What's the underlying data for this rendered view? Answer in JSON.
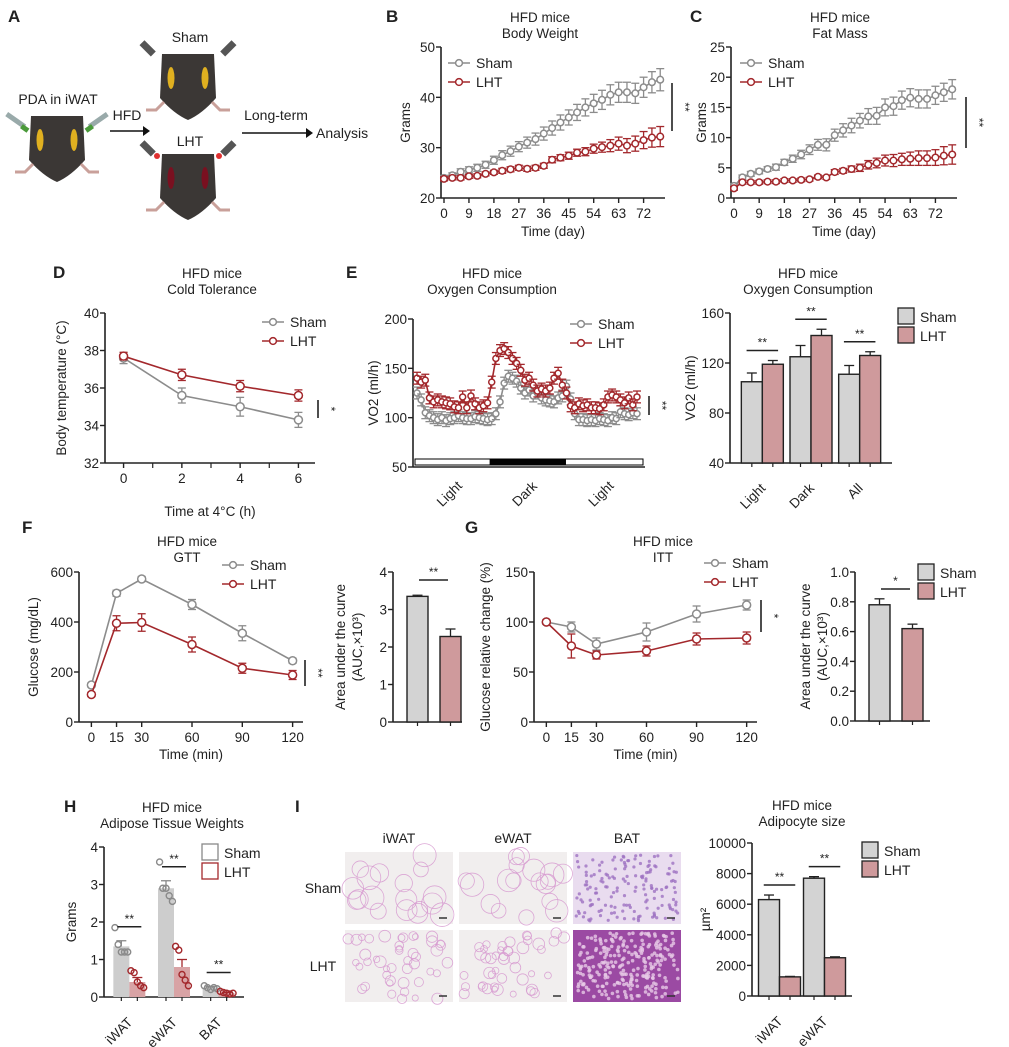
{
  "colors": {
    "sham_line": "#8c8c8c",
    "lht_line": "#a3282c",
    "sham_bar": "#d3d3d3",
    "lht_bar": "#cf9a9c",
    "axis": "#222222",
    "tissue_sham_bar": "#cdcdcd",
    "tissue_lht_bar": "#d8a3a5"
  },
  "panel_labels": [
    "A",
    "B",
    "C",
    "D",
    "E",
    "F",
    "G",
    "H",
    "I"
  ],
  "schematic": {
    "start_label": "PDA in iWAT",
    "arrow1_label": "HFD",
    "group_top": "Sham",
    "group_bottom": "LHT",
    "arrow2_label": "Long-term",
    "end_label": "Analysis"
  },
  "histology": {
    "columns": [
      "iWAT",
      "eWAT",
      "BAT"
    ],
    "rows": [
      "Sham",
      "LHT"
    ]
  },
  "chart_data": [
    {
      "id": "B",
      "type": "line",
      "title": "HFD mice\nBody Weight",
      "title_lines": [
        "HFD mice",
        "Body Weight"
      ],
      "xlabel": "Time (day)",
      "ylabel": "Grams",
      "xlim": [
        0,
        79
      ],
      "ylim": [
        20,
        50
      ],
      "xticks": [
        0,
        9,
        18,
        27,
        36,
        45,
        54,
        63,
        72
      ],
      "yticks": [
        20,
        30,
        40,
        50
      ],
      "legend": "top-left",
      "significance": "**",
      "x": [
        0,
        3,
        6,
        9,
        12,
        15,
        18,
        21,
        24,
        27,
        30,
        33,
        36,
        39,
        42,
        45,
        48,
        51,
        54,
        57,
        60,
        63,
        66,
        69,
        72,
        75,
        78
      ],
      "series": [
        {
          "name": "Sham",
          "values": [
            24,
            24.5,
            25.2,
            25.6,
            26,
            26.6,
            27.5,
            28.5,
            29.3,
            30.2,
            31,
            31.7,
            32.8,
            33.9,
            35,
            36,
            37,
            38,
            38.8,
            39.5,
            40.5,
            41,
            41,
            40.8,
            42,
            43,
            43.5
          ],
          "errors": [
            0.5,
            0.5,
            0.6,
            0.6,
            0.7,
            0.7,
            0.8,
            0.9,
            1,
            1,
            1.1,
            1.2,
            1.3,
            1.4,
            1.5,
            1.5,
            1.6,
            1.7,
            1.8,
            1.9,
            2,
            2,
            2,
            2,
            2,
            2.1,
            2.2
          ]
        },
        {
          "name": "LHT",
          "values": [
            23.8,
            24,
            24,
            24.3,
            24.4,
            24.8,
            25.1,
            25.4,
            25.7,
            26,
            25.8,
            26,
            26.4,
            27.6,
            28,
            28.4,
            29,
            29.2,
            29.8,
            30.1,
            30.4,
            30.8,
            30.4,
            30.8,
            31.5,
            32,
            32.2
          ],
          "errors": [
            0.4,
            0.4,
            0.4,
            0.4,
            0.4,
            0.4,
            0.4,
            0.5,
            0.5,
            0.5,
            0.5,
            0.5,
            0.5,
            0.6,
            0.6,
            0.7,
            0.7,
            0.8,
            0.9,
            1,
            1.2,
            1.3,
            1.4,
            1.5,
            1.7,
            1.9,
            2
          ]
        }
      ]
    },
    {
      "id": "C",
      "type": "line",
      "title_lines": [
        "HFD mice",
        "Fat Mass"
      ],
      "xlabel": "Time (day)",
      "ylabel": "Grams",
      "xlim": [
        0,
        79
      ],
      "ylim": [
        0,
        25
      ],
      "xticks": [
        0,
        9,
        18,
        27,
        36,
        45,
        54,
        63,
        72
      ],
      "yticks": [
        0,
        5,
        10,
        15,
        20,
        25
      ],
      "legend": "top-left",
      "significance": "**",
      "x": [
        0,
        3,
        6,
        9,
        12,
        15,
        18,
        21,
        24,
        27,
        30,
        33,
        36,
        39,
        42,
        45,
        48,
        51,
        54,
        57,
        60,
        63,
        66,
        69,
        72,
        75,
        78
      ],
      "series": [
        {
          "name": "Sham",
          "values": [
            2,
            3.4,
            4,
            4.4,
            4.8,
            5.1,
            5.9,
            6.5,
            7.2,
            8,
            8.8,
            8.8,
            10.4,
            11.2,
            12,
            12.8,
            13.5,
            13.6,
            15,
            15.2,
            16.2,
            16.6,
            16.4,
            16.4,
            17,
            17.5,
            18
          ],
          "errors": [
            0.4,
            0.4,
            0.4,
            0.4,
            0.4,
            0.5,
            0.5,
            0.6,
            0.7,
            0.8,
            0.9,
            1,
            1,
            1.1,
            1.2,
            1.2,
            1.3,
            1.4,
            1.4,
            1.5,
            1.5,
            1.5,
            1.5,
            1.5,
            1.5,
            1.5,
            1.6
          ]
        },
        {
          "name": "LHT",
          "values": [
            1.6,
            2.6,
            2.6,
            2.6,
            2.7,
            2.7,
            2.9,
            2.9,
            3,
            3.1,
            3.5,
            3.4,
            4.3,
            4.5,
            4.8,
            5,
            5.5,
            5.8,
            6.2,
            6.2,
            6.4,
            6.5,
            6.6,
            6.6,
            6.7,
            7,
            7.2
          ],
          "errors": [
            0.3,
            0.3,
            0.3,
            0.3,
            0.3,
            0.3,
            0.3,
            0.3,
            0.3,
            0.3,
            0.3,
            0.3,
            0.4,
            0.4,
            0.5,
            0.6,
            0.7,
            0.8,
            0.9,
            1,
            1,
            1.1,
            1.2,
            1.2,
            1.3,
            1.5,
            1.6
          ]
        }
      ]
    },
    {
      "id": "D",
      "type": "line",
      "title_lines": [
        "HFD mice",
        "Cold Tolerance"
      ],
      "xlabel": "Time at 4°C (h)",
      "ylabel": "Body temperature (°C)",
      "xlim": [
        -0.5,
        6.5
      ],
      "ylim": [
        32,
        40
      ],
      "xticks": [
        0,
        2,
        4,
        6
      ],
      "yticks": [
        32,
        34,
        36,
        38,
        40
      ],
      "legend": "top-right",
      "significance": "*",
      "x": [
        0,
        2,
        4,
        6
      ],
      "series": [
        {
          "name": "Sham",
          "values": [
            37.6,
            35.6,
            35.0,
            34.3
          ],
          "errors": [
            0.3,
            0.4,
            0.5,
            0.4
          ]
        },
        {
          "name": "LHT",
          "values": [
            37.7,
            36.7,
            36.1,
            35.6
          ],
          "errors": [
            0.2,
            0.3,
            0.3,
            0.3
          ]
        }
      ]
    },
    {
      "id": "E-left",
      "type": "line",
      "title_lines": [
        "HFD mice",
        "Oxygen Consumption"
      ],
      "ylabel": "VO2 (ml/h)",
      "ylim": [
        50,
        200
      ],
      "yticks": [
        50,
        100,
        150,
        200
      ],
      "period_labels": [
        "Light",
        "Dark",
        "Light"
      ],
      "period_fractions": [
        0.33,
        0.33,
        0.34
      ],
      "legend": "top-right",
      "significance": "**",
      "series": [
        {
          "name": "Sham",
          "values": [
            125,
            118,
            105,
            102,
            100,
            98,
            100,
            97,
            99,
            100,
            102,
            100,
            99,
            99,
            101,
            100,
            99,
            98,
            99,
            104,
            116,
            135,
            142,
            140,
            137,
            130,
            125,
            128,
            122,
            125,
            120,
            118,
            117,
            116,
            120,
            122,
            132,
            119,
            104,
            98,
            98,
            97,
            98,
            97,
            99,
            98,
            97,
            100,
            99,
            106,
            104,
            103,
            105,
            104
          ]
        },
        {
          "name": "LHT",
          "values": [
            140,
            136,
            138,
            120,
            116,
            118,
            116,
            115,
            114,
            111,
            110,
            121,
            110,
            122,
            114,
            110,
            112,
            115,
            136,
            160,
            168,
            170,
            166,
            160,
            155,
            148,
            138,
            140,
            133,
            127,
            129,
            127,
            130,
            140,
            145,
            133,
            125,
            112,
            110,
            114,
            112,
            113,
            110,
            110,
            109,
            113,
            121,
            123,
            121,
            118,
            115,
            120,
            113,
            121
          ]
        }
      ]
    },
    {
      "id": "E-right",
      "type": "bar",
      "title_lines": [
        "HFD mice",
        "Oxygen Consumption"
      ],
      "ylabel": "VO2 (ml/h)",
      "ylim": [
        40,
        160
      ],
      "yticks": [
        40,
        80,
        120,
        160
      ],
      "categories": [
        "Light",
        "Dark",
        "All"
      ],
      "legend": "top-right",
      "significance": [
        "**",
        "**",
        "**"
      ],
      "series": [
        {
          "name": "Sham",
          "values": [
            105,
            125,
            111
          ],
          "errors": [
            7,
            9,
            7
          ]
        },
        {
          "name": "LHT",
          "values": [
            119,
            142,
            126
          ],
          "errors": [
            3,
            5,
            3
          ]
        }
      ]
    },
    {
      "id": "F-left",
      "type": "line",
      "title_lines": [
        "HFD mice",
        "GTT"
      ],
      "xlabel": "Time (min)",
      "ylabel": "Glucose (mg/dL)",
      "xlim": [
        -5,
        125
      ],
      "ylim": [
        0,
        600
      ],
      "xticks": [
        0,
        15,
        30,
        60,
        90,
        120
      ],
      "yticks": [
        0,
        200,
        400,
        600
      ],
      "legend": "top-right",
      "significance": "**",
      "x": [
        0,
        15,
        30,
        60,
        90,
        120
      ],
      "series": [
        {
          "name": "Sham",
          "values": [
            148,
            515,
            572,
            470,
            355,
            245
          ],
          "errors": [
            8,
            12,
            10,
            20,
            30,
            10
          ]
        },
        {
          "name": "LHT",
          "values": [
            110,
            395,
            398,
            310,
            215,
            188
          ],
          "errors": [
            8,
            30,
            35,
            30,
            20,
            18
          ]
        }
      ]
    },
    {
      "id": "F-right",
      "type": "bar",
      "ylabel": "Area under the curve (AUC,×10³)",
      "ylabel_lines": [
        "Area under the curve",
        "(AUC,×10³)"
      ],
      "ylim": [
        0,
        4
      ],
      "yticks": [
        0,
        1,
        2,
        3,
        4
      ],
      "categories": [
        "Sham",
        "LHT"
      ],
      "values": [
        3.35,
        2.28
      ],
      "errors": [
        0.03,
        0.2
      ],
      "significance": "**"
    },
    {
      "id": "G-left",
      "type": "line",
      "title_lines": [
        "HFD mice",
        "ITT"
      ],
      "xlabel": "Time (min)",
      "ylabel": "Glucose relative change (%)",
      "xlim": [
        -5,
        125
      ],
      "ylim": [
        0,
        150
      ],
      "xticks": [
        0,
        15,
        30,
        60,
        90,
        120
      ],
      "yticks": [
        0,
        50,
        100,
        150
      ],
      "legend": "top-right",
      "significance": "*",
      "x": [
        0,
        15,
        30,
        60,
        90,
        120
      ],
      "series": [
        {
          "name": "Sham",
          "values": [
            100,
            95,
            78,
            90,
            108,
            117
          ],
          "errors": [
            2,
            5,
            6,
            9,
            8,
            5
          ]
        },
        {
          "name": "LHT",
          "values": [
            100,
            76,
            67,
            71,
            83,
            84
          ],
          "errors": [
            2,
            12,
            4,
            5,
            6,
            6
          ]
        }
      ]
    },
    {
      "id": "G-right",
      "type": "bar",
      "ylabel_lines": [
        "Area under the curve",
        "(AUC,×10³)"
      ],
      "ylim": [
        0,
        1.0
      ],
      "yticks": [
        0.0,
        0.2,
        0.4,
        0.6,
        0.8,
        1.0
      ],
      "categories": [
        "Sham",
        "LHT"
      ],
      "values": [
        0.78,
        0.62
      ],
      "errors": [
        0.04,
        0.03
      ],
      "legend": "top-right",
      "significance": "*"
    },
    {
      "id": "H",
      "type": "bar",
      "title_lines": [
        "HFD mice",
        "Adipose Tissue Weights"
      ],
      "ylabel": "Grams",
      "ylim": [
        0,
        4
      ],
      "yticks": [
        0,
        1,
        2,
        3,
        4
      ],
      "categories": [
        "iWAT",
        "eWAT",
        "BAT"
      ],
      "legend": "top-right",
      "significance": [
        "**",
        "**",
        "**"
      ],
      "series": [
        {
          "name": "Sham",
          "values": [
            1.35,
            2.9,
            0.25
          ],
          "errors": [
            0.15,
            0.2,
            0.03
          ],
          "points": [
            [
              1.85,
              1.4,
              1.2,
              1.2,
              1.2
            ],
            [
              3.6,
              2.9,
              2.9,
              2.7,
              2.55
            ],
            [
              0.3,
              0.25,
              0.2,
              0.25,
              0.22
            ]
          ]
        },
        {
          "name": "LHT",
          "values": [
            0.4,
            0.8,
            0.1
          ],
          "errors": [
            0.12,
            0.2,
            0.02
          ],
          "points": [
            [
              0.7,
              0.65,
              0.4,
              0.3,
              0.25
            ],
            [
              1.35,
              1.25,
              0.6,
              0.45,
              0.3
            ],
            [
              0.15,
              0.12,
              0.1,
              0.08,
              0.1
            ]
          ]
        }
      ]
    },
    {
      "id": "I-right",
      "type": "bar",
      "title_lines": [
        "HFD mice",
        "Adipocyte size"
      ],
      "ylabel": "µm²",
      "ylim": [
        0,
        10000
      ],
      "yticks": [
        0,
        2000,
        4000,
        6000,
        8000,
        10000
      ],
      "categories": [
        "iWAT",
        "eWAT"
      ],
      "legend": "top-right",
      "significance": [
        "**",
        "**"
      ],
      "series": [
        {
          "name": "Sham",
          "values": [
            6300,
            7700
          ],
          "errors": [
            300,
            100
          ]
        },
        {
          "name": "LHT",
          "values": [
            1250,
            2500
          ],
          "errors": [
            30,
            60
          ]
        }
      ]
    }
  ]
}
